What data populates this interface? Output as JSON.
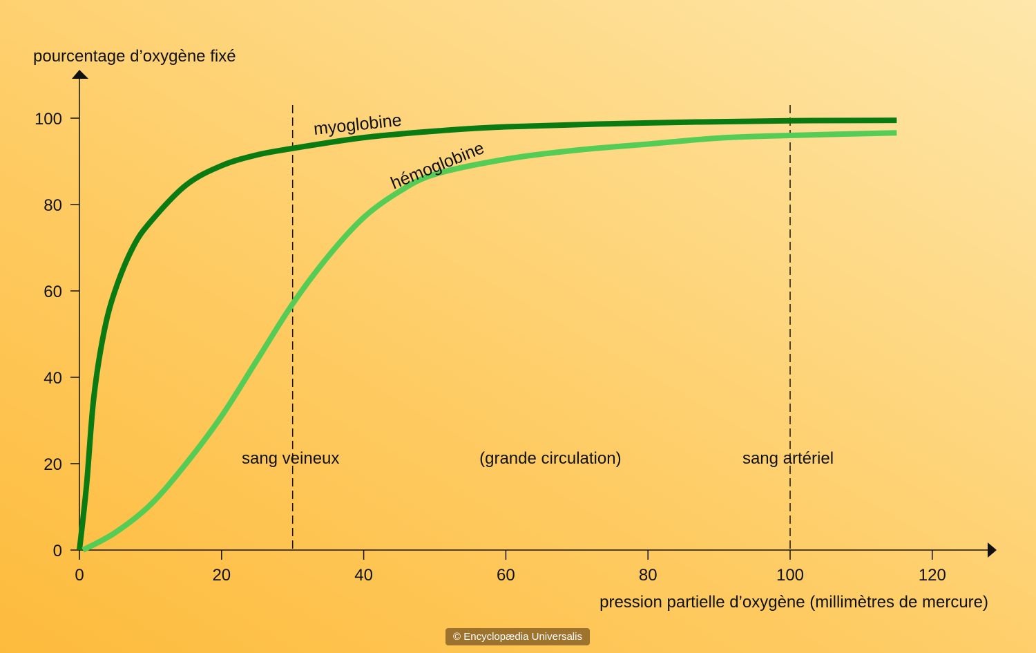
{
  "chart_data": {
    "type": "line",
    "ylabel": "pourcentage d’oxygène fixé",
    "xlabel": "pression partielle d’oxygène (millimètres de mercure)",
    "xlim": [
      0,
      128
    ],
    "ylim": [
      0,
      108
    ],
    "xticks": [
      0,
      20,
      40,
      60,
      80,
      100,
      120
    ],
    "yticks": [
      0,
      20,
      40,
      60,
      80,
      100
    ],
    "series": [
      {
        "name": "myoglobine",
        "color": "#0a7a12",
        "x": [
          0,
          1,
          2,
          3.4,
          5,
          7.5,
          10,
          15,
          20,
          25,
          30,
          40,
          50,
          60,
          80,
          100,
          115
        ],
        "y": [
          0,
          15,
          35,
          50,
          60,
          70,
          76,
          84.5,
          89,
          91.5,
          93,
          95.5,
          97,
          98,
          98.9,
          99.4,
          99.5
        ]
      },
      {
        "name": "hémoglobine",
        "color": "#55cc55",
        "x": [
          0.5,
          5,
          10,
          15,
          20,
          25,
          30,
          35,
          40,
          45,
          50,
          60,
          70,
          80,
          90,
          100,
          115
        ],
        "y": [
          0,
          4,
          10.5,
          20,
          31,
          44,
          57,
          68,
          77,
          83,
          87,
          90.5,
          92.6,
          94,
          95.4,
          96,
          96.6
        ]
      }
    ],
    "annotations": [
      {
        "x": 30,
        "label": "sang veineux"
      },
      {
        "x": 65,
        "label": "(grande circulation)"
      },
      {
        "x": 100,
        "label": "sang artériel"
      }
    ]
  },
  "copyright": "© Encyclopædia Universalis"
}
